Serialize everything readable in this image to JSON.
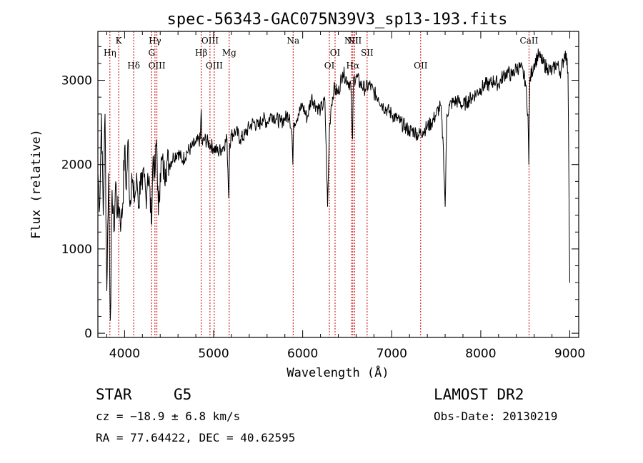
{
  "chart_data": {
    "type": "line",
    "title": "spec-56343-GAC075N39V3_sp13-193.fits",
    "xlabel": "Wavelength (Å)",
    "ylabel": "Flux (relative)",
    "xlim": [
      3700,
      9100
    ],
    "ylim": [
      -50,
      3580
    ],
    "x_ticks": [
      {
        "value": 4000,
        "label": "4000"
      },
      {
        "value": 5000,
        "label": "5000"
      },
      {
        "value": 6000,
        "label": "6000"
      },
      {
        "value": 7000,
        "label": "7000"
      },
      {
        "value": 8000,
        "label": "8000"
      },
      {
        "value": 9000,
        "label": "9000"
      }
    ],
    "y_ticks": [
      {
        "value": 0,
        "label": "0"
      },
      {
        "value": 1000,
        "label": "1000"
      },
      {
        "value": 2000,
        "label": "2000"
      },
      {
        "value": 3000,
        "label": "3000"
      }
    ],
    "grid": false,
    "series": [
      {
        "color": "#000000",
        "x": [
          3700,
          3720,
          3740,
          3760,
          3780,
          3800,
          3820,
          3840,
          3860,
          3880,
          3900,
          3920,
          3940,
          3960,
          3980,
          4000,
          4020,
          4040,
          4060,
          4080,
          4100,
          4120,
          4140,
          4160,
          4180,
          4200,
          4220,
          4240,
          4260,
          4280,
          4300,
          4320,
          4340,
          4360,
          4380,
          4400,
          4420,
          4440,
          4460,
          4480,
          4500,
          4550,
          4600,
          4650,
          4700,
          4750,
          4800,
          4850,
          4860,
          4870,
          4900,
          4950,
          5000,
          5050,
          5100,
          5150,
          5170,
          5180,
          5200,
          5250,
          5300,
          5350,
          5400,
          5450,
          5500,
          5550,
          5600,
          5650,
          5700,
          5750,
          5800,
          5850,
          5880,
          5890,
          5900,
          5950,
          6000,
          6050,
          6100,
          6150,
          6200,
          6250,
          6280,
          6300,
          6320,
          6350,
          6400,
          6450,
          6500,
          6540,
          6560,
          6570,
          6600,
          6650,
          6700,
          6750,
          6800,
          6850,
          6900,
          6950,
          7000,
          7050,
          7100,
          7150,
          7200,
          7250,
          7300,
          7350,
          7400,
          7450,
          7500,
          7550,
          7580,
          7600,
          7620,
          7650,
          7700,
          7750,
          7800,
          7850,
          7900,
          7950,
          8000,
          8050,
          8100,
          8150,
          8200,
          8250,
          8300,
          8350,
          8400,
          8450,
          8500,
          8530,
          8540,
          8550,
          8600,
          8650,
          8700,
          8750,
          8800,
          8850,
          8900,
          8950,
          8980,
          9000
        ],
        "y": [
          1900,
          1500,
          2600,
          1400,
          2600,
          500,
          1900,
          150,
          1700,
          1200,
          1800,
          1400,
          1500,
          1300,
          1550,
          2200,
          1700,
          2300,
          1500,
          1900,
          1600,
          1650,
          1800,
          1500,
          1900,
          1700,
          1850,
          1600,
          1900,
          1750,
          1300,
          2100,
          1850,
          2300,
          1400,
          1900,
          2050,
          1900,
          1950,
          2050,
          2000,
          2100,
          2150,
          2050,
          2150,
          2200,
          2250,
          2300,
          2650,
          2250,
          2300,
          2250,
          2200,
          2150,
          2200,
          2300,
          1600,
          2250,
          2350,
          2400,
          2300,
          2350,
          2450,
          2500,
          2450,
          2550,
          2500,
          2600,
          2550,
          2500,
          2550,
          2600,
          2350,
          2000,
          2500,
          2600,
          2700,
          2550,
          2800,
          2700,
          2650,
          2750,
          1500,
          2400,
          2700,
          2900,
          2850,
          3100,
          3000,
          2950,
          2300,
          3000,
          3050,
          2950,
          2900,
          2950,
          2850,
          2800,
          2700,
          2650,
          2600,
          2550,
          2500,
          2450,
          2400,
          2400,
          2350,
          2400,
          2450,
          2500,
          2600,
          2700,
          2200,
          1500,
          2600,
          2700,
          2750,
          2750,
          2700,
          2750,
          2800,
          2850,
          2900,
          2950,
          2950,
          3000,
          2950,
          3050,
          3100,
          3050,
          3150,
          3150,
          3000,
          2600,
          2000,
          3000,
          3200,
          3300,
          3200,
          3150,
          3100,
          3200,
          3100,
          3350,
          3100,
          600
        ]
      }
    ],
    "emission_lines": [
      {
        "wavelength": 3835,
        "label": "Hη",
        "row": 2
      },
      {
        "wavelength": 3934,
        "label": "K",
        "row": 1
      },
      {
        "wavelength": 4102,
        "label": "Hδ",
        "row": 3
      },
      {
        "wavelength": 4304,
        "label": "G",
        "row": 2
      },
      {
        "wavelength": 4341,
        "label": "Hγ",
        "row": 1
      },
      {
        "wavelength": 4363,
        "label": "OIII",
        "row": 3
      },
      {
        "wavelength": 4861,
        "label": "Hβ",
        "row": 2
      },
      {
        "wavelength": 4959,
        "label": "OIII",
        "row": 1
      },
      {
        "wavelength": 5007,
        "label": "OIII",
        "row": 3
      },
      {
        "wavelength": 5175,
        "label": "Mg",
        "row": 2
      },
      {
        "wavelength": 5893,
        "label": "Na",
        "row": 1
      },
      {
        "wavelength": 6300,
        "label": "OI",
        "row": 3
      },
      {
        "wavelength": 6364,
        "label": "OI",
        "row": 2
      },
      {
        "wavelength": 6548,
        "label": "NII",
        "row": 1
      },
      {
        "wavelength": 6563,
        "label": "Hα",
        "row": 3
      },
      {
        "wavelength": 6583,
        "label": "NII",
        "row": 1
      },
      {
        "wavelength": 6724,
        "label": "SII",
        "row": 2
      },
      {
        "wavelength": 7325,
        "label": "OII",
        "row": 3
      },
      {
        "wavelength": 8542,
        "label": "CaII",
        "row": 1
      }
    ],
    "line_color": "#cc0000"
  },
  "info": {
    "object_class": "STAR",
    "subclass": "G5",
    "survey": "LAMOST DR2",
    "redshift_text": "cz = −18.9 ± 6.8 km/s",
    "obs_date": "Obs-Date: 20130219",
    "coords": "RA =  77.64422, DEC =  40.62595"
  }
}
